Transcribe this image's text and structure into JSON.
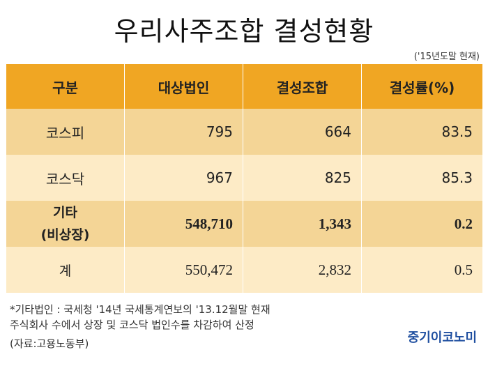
{
  "title": "우리사주조합 결성현황",
  "as_of": "('15년도말 현재)",
  "table": {
    "headers": [
      "구분",
      "대상법인",
      "결성조합",
      "결성률(%)"
    ],
    "rows": [
      {
        "category": "코스피",
        "category_line2": "",
        "target": "795",
        "formed": "664",
        "rate": "83.5"
      },
      {
        "category": "코스닥",
        "category_line2": "",
        "target": "967",
        "formed": "825",
        "rate": "85.3"
      },
      {
        "category": "기타",
        "category_line2": "(비상장)",
        "target": "548,710",
        "formed": "1,343",
        "rate": "0.2"
      },
      {
        "category": "계",
        "category_line2": "",
        "target": "550,472",
        "formed": "2,832",
        "rate": "0.5"
      }
    ]
  },
  "footnote": {
    "line1": "*기타법인 : 국세청 '14년 국세통계연보의 '13.12월말 현재",
    "line2": "주식회사 수에서 상장 및 코스닥 법인수를 차감하여 산정"
  },
  "source": "(자료:고용노동부)",
  "brand": "중기이코노미",
  "colors": {
    "header": "#f0a623",
    "row_dark": "#f4d596",
    "row_light": "#fdebc6",
    "brand": "#1f4fa0"
  }
}
